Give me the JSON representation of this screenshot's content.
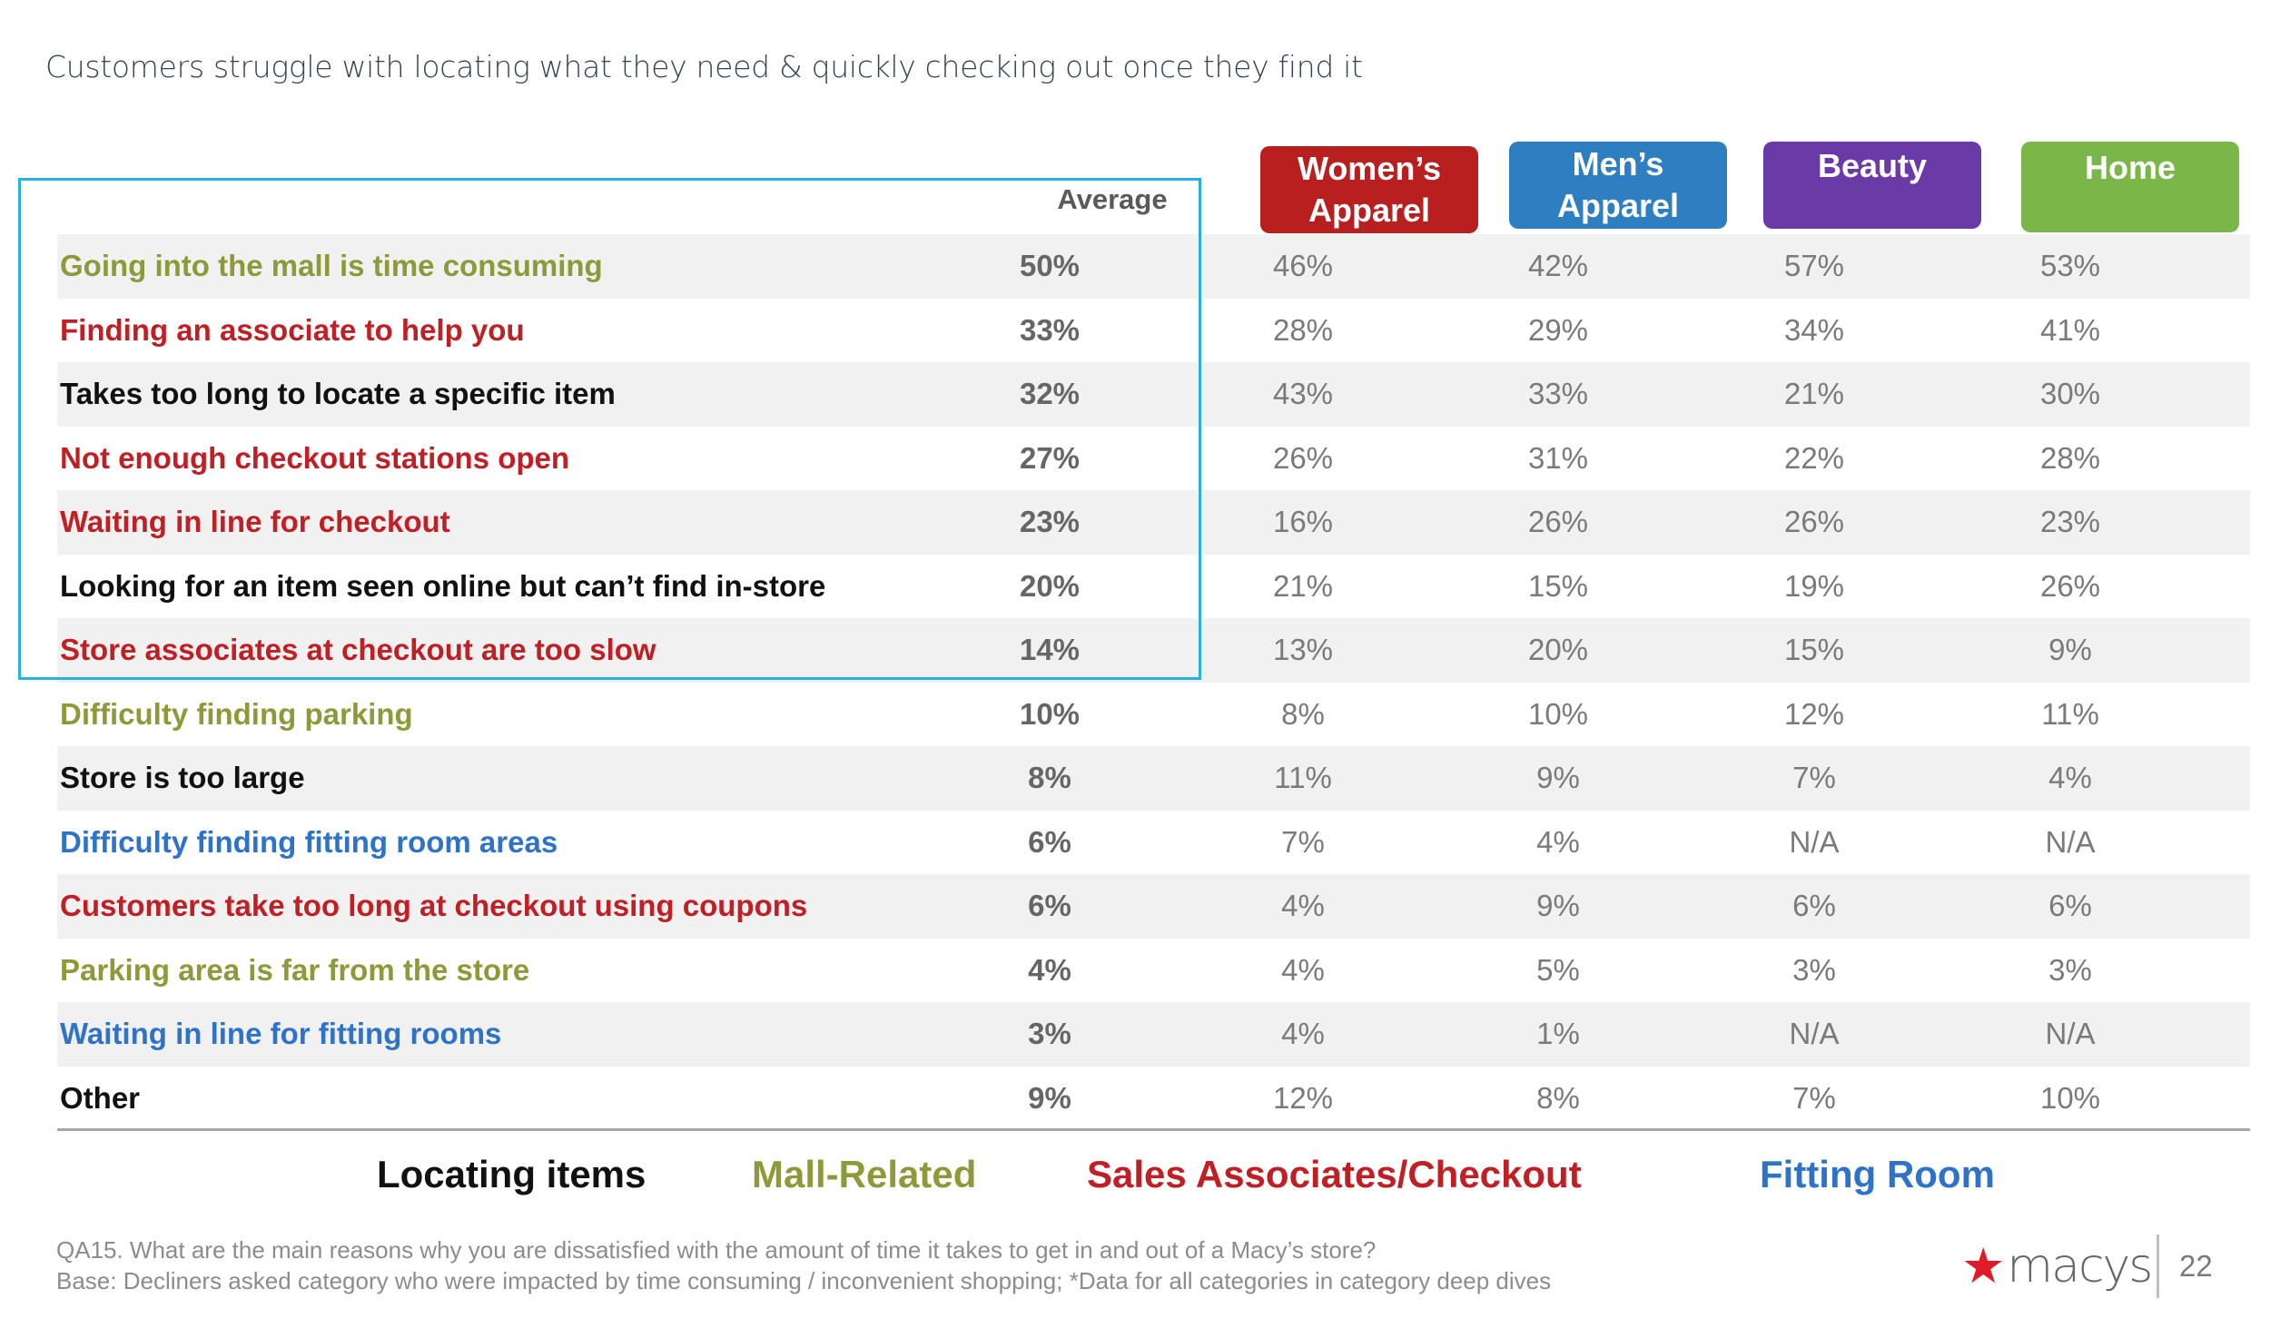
{
  "title": "Customers struggle with locating what they need & quickly checking out once they find it",
  "columns": {
    "average": "Average",
    "categories": [
      {
        "label": "Women’s Apparel",
        "color": "#b8201f"
      },
      {
        "label": "Men’s Apparel",
        "color": "#2e7fc1"
      },
      {
        "label": "Beauty",
        "color": "#6a3aa6"
      },
      {
        "label": "Home",
        "color": "#7ab648"
      }
    ]
  },
  "rows": [
    {
      "label": "Going into the mall is time consuming",
      "group": "mall",
      "average": "50%",
      "values": [
        "46%",
        "42%",
        "57%",
        "53%"
      ]
    },
    {
      "label": "Finding an associate to help you",
      "group": "sales",
      "average": "33%",
      "values": [
        "28%",
        "29%",
        "34%",
        "41%"
      ]
    },
    {
      "label": "Takes too long to locate a specific item",
      "group": "locating",
      "average": "32%",
      "values": [
        "43%",
        "33%",
        "21%",
        "30%"
      ]
    },
    {
      "label": "Not enough checkout stations open",
      "group": "sales",
      "average": "27%",
      "values": [
        "26%",
        "31%",
        "22%",
        "28%"
      ]
    },
    {
      "label": "Waiting in line for checkout",
      "group": "sales",
      "average": "23%",
      "values": [
        "16%",
        "26%",
        "26%",
        "23%"
      ]
    },
    {
      "label": "Looking for an item seen online but can’t find in-store",
      "group": "locating",
      "average": "20%",
      "values": [
        "21%",
        "15%",
        "19%",
        "26%"
      ]
    },
    {
      "label": "Store associates at checkout are too slow",
      "group": "sales",
      "average": "14%",
      "values": [
        "13%",
        "20%",
        "15%",
        "9%"
      ]
    },
    {
      "label": "Difficulty finding parking",
      "group": "mall",
      "average": "10%",
      "values": [
        "8%",
        "10%",
        "12%",
        "11%"
      ]
    },
    {
      "label": "Store is too large",
      "group": "locating",
      "average": "8%",
      "values": [
        "11%",
        "9%",
        "7%",
        "4%"
      ]
    },
    {
      "label": "Difficulty finding fitting room areas",
      "group": "fitting",
      "average": "6%",
      "values": [
        "7%",
        "4%",
        "N/A",
        "N/A"
      ]
    },
    {
      "label": "Customers take too long at checkout using coupons",
      "group": "sales",
      "average": "6%",
      "values": [
        "4%",
        "9%",
        "6%",
        "6%"
      ]
    },
    {
      "label": "Parking area is far from the store",
      "group": "mall",
      "average": "4%",
      "values": [
        "4%",
        "5%",
        "3%",
        "3%"
      ]
    },
    {
      "label": "Waiting in line for fitting rooms",
      "group": "fitting",
      "average": "3%",
      "values": [
        "4%",
        "1%",
        "N/A",
        "N/A"
      ]
    },
    {
      "label": "Other",
      "group": "locating",
      "average": "9%",
      "values": [
        "12%",
        "8%",
        "7%",
        "10%"
      ]
    }
  ],
  "legend": [
    {
      "label": "Locating items",
      "group": "locating"
    },
    {
      "label": "Mall-Related",
      "group": "mall"
    },
    {
      "label": "Sales Associates/Checkout",
      "group": "sales"
    },
    {
      "label": "Fitting Room",
      "group": "fitting"
    }
  ],
  "footnote": {
    "question": "QA15. What are the main reasons why you are dissatisfied with the amount of time it takes to get in and out of a Macy’s store?",
    "base": "Base: Decliners asked category who were impacted by time consuming / inconvenient shopping; *Data for all categories in category deep dives"
  },
  "brand": {
    "logo_text": "macys",
    "star_icon": "star-icon",
    "page_number": "22"
  }
}
